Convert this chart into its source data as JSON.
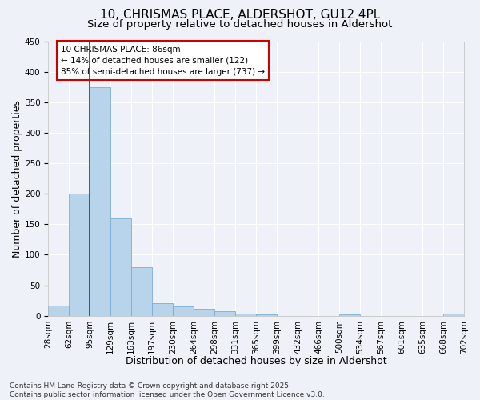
{
  "title_line1": "10, CHRISMAS PLACE, ALDERSHOT, GU12 4PL",
  "title_line2": "Size of property relative to detached houses in Aldershot",
  "xlabel": "Distribution of detached houses by size in Aldershot",
  "ylabel": "Number of detached properties",
  "bar_values": [
    17,
    200,
    375,
    160,
    80,
    20,
    15,
    12,
    7,
    4,
    2,
    0,
    0,
    0,
    2,
    0,
    0,
    0,
    0,
    3
  ],
  "bin_labels": [
    "28sqm",
    "62sqm",
    "95sqm",
    "129sqm",
    "163sqm",
    "197sqm",
    "230sqm",
    "264sqm",
    "298sqm",
    "331sqm",
    "365sqm",
    "399sqm",
    "432sqm",
    "466sqm",
    "500sqm",
    "534sqm",
    "567sqm",
    "601sqm",
    "635sqm",
    "668sqm",
    "702sqm"
  ],
  "bar_color": "#b8d4ea",
  "bar_edge_color": "#7aadd4",
  "background_color": "#eef2f8",
  "grid_color": "#ffffff",
  "annotation_text": "10 CHRISMAS PLACE: 86sqm\n← 14% of detached houses are smaller (122)\n85% of semi-detached houses are larger (737) →",
  "annotation_box_color": "#ffffff",
  "annotation_box_edge": "#cc0000",
  "vline_color": "#cc0000",
  "vline_position": 2,
  "ylim": [
    0,
    450
  ],
  "yticks": [
    0,
    50,
    100,
    150,
    200,
    250,
    300,
    350,
    400,
    450
  ],
  "footnote": "Contains HM Land Registry data © Crown copyright and database right 2025.\nContains public sector information licensed under the Open Government Licence v3.0.",
  "title_fontsize": 11,
  "subtitle_fontsize": 9.5,
  "axis_label_fontsize": 9,
  "tick_fontsize": 7.5,
  "annotation_fontsize": 7.5,
  "footnote_fontsize": 6.5
}
